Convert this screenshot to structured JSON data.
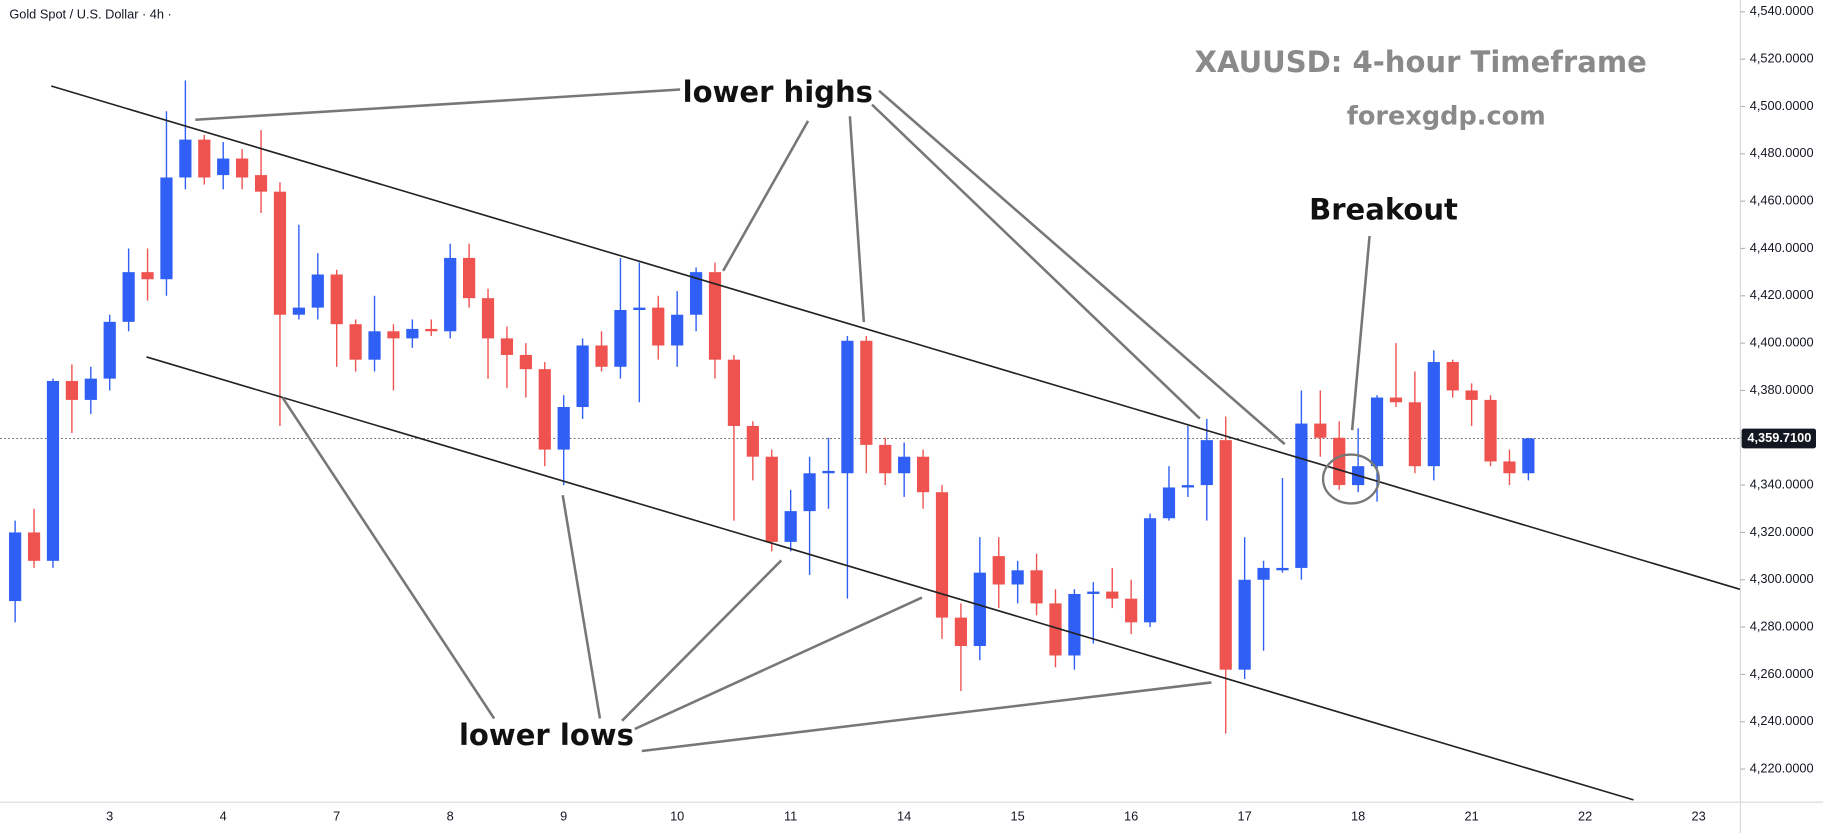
{
  "chart_data": {
    "type": "candlestick",
    "symbol": "Gold Spot / U.S. Dollar · 4h ·",
    "title": "XAUUSD: 4-hour Timeframe",
    "subtitle": "forexgdp.com",
    "annotations": [
      "lower highs",
      "lower lows",
      "Breakout"
    ],
    "up_color": "#2f5ff5",
    "down_color": "#ef5350",
    "categories": [
      null,
      null,
      null,
      null,
      null,
      "3",
      null,
      null,
      null,
      null,
      null,
      "4",
      null,
      null,
      null,
      null,
      null,
      "7",
      null,
      null,
      null,
      null,
      null,
      "8",
      null,
      null,
      null,
      null,
      null,
      "9",
      null,
      null,
      null,
      null,
      null,
      "10",
      null,
      null,
      null,
      null,
      null,
      "11",
      null,
      null,
      null,
      null,
      null,
      "14",
      null,
      null,
      null,
      null,
      null,
      "15",
      null,
      null,
      null,
      null,
      null,
      "16",
      null,
      null,
      null,
      null,
      null,
      "17",
      null,
      null,
      null,
      null,
      null,
      "18",
      null,
      null,
      null,
      null,
      null,
      "21",
      null,
      null,
      null,
      null,
      null,
      "22",
      null,
      null,
      null,
      null,
      null,
      "23"
    ],
    "open": [
      4291,
      4320,
      4308,
      4384,
      4376,
      4385,
      4409,
      4430,
      4427,
      4470,
      4486,
      4471,
      4478,
      4471,
      4464,
      4412,
      4415,
      4429,
      4408,
      4393,
      4405,
      4402,
      4406,
      4405,
      4436,
      4419,
      4402,
      4395,
      4389,
      4355,
      4373,
      4399,
      4390,
      4414,
      4415,
      4399,
      4412,
      4430,
      4393,
      4365,
      4352,
      4316,
      4329,
      4345,
      4345,
      4401,
      4357,
      4345,
      4352,
      4337,
      4284,
      4272,
      4310,
      4298,
      4304,
      4290,
      4268,
      4294,
      4295,
      4292,
      4282,
      4326,
      4339,
      4340,
      4359,
      4262,
      4300,
      4304,
      4305,
      4366,
      4360,
      4340,
      4348,
      4377,
      4375,
      4348,
      4392,
      4380,
      4376,
      4350,
      4345,
      null,
      null,
      null,
      null,
      null,
      null,
      null,
      null,
      null
    ],
    "high": [
      4325,
      4330,
      4385,
      4391,
      4390,
      4412,
      4440,
      4440,
      4498,
      4511,
      4488,
      4485,
      4482,
      4490,
      4468,
      4450,
      4438,
      4431,
      4410,
      4420,
      4408,
      4410,
      4410,
      4442,
      4442,
      4423,
      4407,
      4400,
      4392,
      4378,
      4402,
      4405,
      4436,
      4434,
      4420,
      4422,
      4432,
      4434,
      4395,
      4367,
      4355,
      4338,
      4352,
      4360,
      4403,
      4403,
      4360,
      4358,
      4355,
      4340,
      4290,
      4318,
      4318,
      4308,
      4311,
      4296,
      4296,
      4299,
      4305,
      4300,
      4328,
      4348,
      4365,
      4368,
      4369,
      4318,
      4308,
      4343,
      4380,
      4380,
      4367,
      4364,
      4378,
      4400,
      4388,
      4397,
      4393,
      4383,
      4378,
      4355,
      4360,
      null,
      null,
      null,
      null,
      null,
      null,
      null,
      null,
      null
    ],
    "low": [
      4282,
      4305,
      4305,
      4362,
      4370,
      4380,
      4405,
      4418,
      4420,
      4465,
      4467,
      4465,
      4465,
      4455,
      4365,
      4410,
      4410,
      4390,
      4388,
      4388,
      4380,
      4398,
      4403,
      4402,
      4415,
      4385,
      4381,
      4377,
      4348,
      4340,
      4368,
      4388,
      4385,
      4375,
      4393,
      4390,
      4405,
      4385,
      4325,
      4342,
      4312,
      4312,
      4302,
      4330,
      4292,
      4345,
      4340,
      4335,
      4330,
      4275,
      4253,
      4266,
      4288,
      4290,
      4285,
      4263,
      4262,
      4273,
      4288,
      4277,
      4280,
      4325,
      4335,
      4325,
      4235,
      4258,
      4270,
      4303,
      4300,
      4352,
      4338,
      4337,
      4333,
      4373,
      4345,
      4342,
      4377,
      4365,
      4348,
      4340,
      4342,
      null,
      null,
      null,
      null,
      null,
      null,
      null,
      null,
      null
    ],
    "close": [
      4320,
      4308,
      4384,
      4376,
      4385,
      4409,
      4430,
      4427,
      4470,
      4486,
      4470,
      4478,
      4470,
      4464,
      4412,
      4415,
      4429,
      4408,
      4393,
      4405,
      4402,
      4406,
      4405,
      4436,
      4419,
      4402,
      4395,
      4389,
      4355,
      4373,
      4399,
      4390,
      4414,
      4415,
      4399,
      4412,
      4430,
      4393,
      4365,
      4352,
      4316,
      4329,
      4345,
      4346,
      4401,
      4357,
      4345,
      4352,
      4337,
      4284,
      4272,
      4303,
      4298,
      4304,
      4290,
      4268,
      4294,
      4295,
      4292,
      4282,
      4326,
      4339,
      4340,
      4359,
      4262,
      4300,
      4305,
      4305,
      4366,
      4360,
      4340,
      4348,
      4377,
      4375,
      4348,
      4392,
      4380,
      4376,
      4350,
      4345,
      4359.71,
      null,
      null,
      null,
      null,
      null,
      null,
      null,
      null,
      null
    ],
    "last_price": {
      "value": 4359.71,
      "label": "4,359.7100"
    },
    "ylim": [
      4206,
      4545
    ],
    "yticks": [
      {
        "value": 4220,
        "label": "4,220.0000"
      },
      {
        "value": 4240,
        "label": "4,240.0000"
      },
      {
        "value": 4260,
        "label": "4,260.0000"
      },
      {
        "value": 4280,
        "label": "4,280.0000"
      },
      {
        "value": 4300,
        "label": "4,300.0000"
      },
      {
        "value": 4320,
        "label": "4,320.0000"
      },
      {
        "value": 4340,
        "label": "4,340.0000"
      },
      {
        "value": 4360,
        "label": "4,360.0000"
      },
      {
        "value": 4380,
        "label": "4,380.0000"
      },
      {
        "value": 4400,
        "label": "4,400.0000"
      },
      {
        "value": 4420,
        "label": "4,420.0000"
      },
      {
        "value": 4440,
        "label": "4,440.0000"
      },
      {
        "value": 4460,
        "label": "4,460.0000"
      },
      {
        "value": 4480,
        "label": "4,480.0000"
      },
      {
        "value": 4500,
        "label": "4,500.0000"
      },
      {
        "value": 4520,
        "label": "4,520.0000"
      },
      {
        "value": 4540,
        "label": "4,540.0000"
      }
    ]
  }
}
